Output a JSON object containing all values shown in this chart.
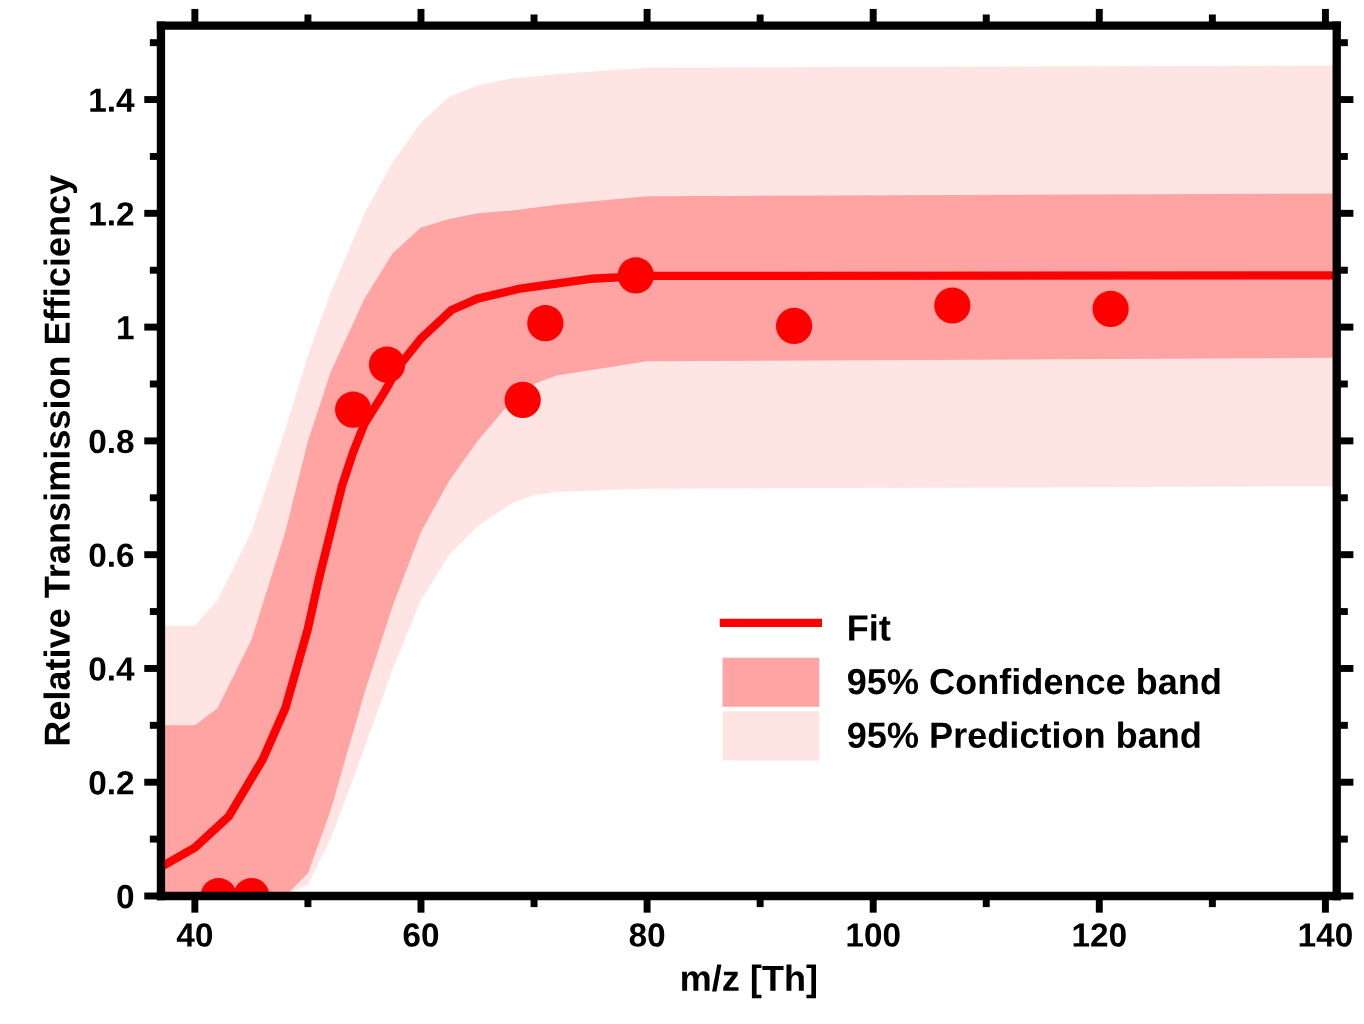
{
  "chart_data": {
    "type": "scatter",
    "xlabel": "m/z [Th]",
    "ylabel": "Relative Transimission Efficiency",
    "xlim": [
      37,
      141
    ],
    "xticks": [
      40,
      60,
      80,
      100,
      120,
      140
    ],
    "ylim": [
      0,
      1.53
    ],
    "yticks": [
      0,
      0.2,
      0.4,
      0.6,
      0.8,
      1,
      1.2,
      1.4
    ],
    "legend": "bottom right",
    "grid": false,
    "series": [
      {
        "name": "95% Prediction band",
        "type": "area",
        "color": "#ffe4e4",
        "x": [
          37,
          40,
          42,
          45,
          48,
          50,
          52,
          55,
          57.5,
          60,
          62.5,
          65,
          68,
          70,
          72,
          80,
          141
        ],
        "values": [
          null,
          null,
          null,
          null,
          null,
          null,
          null,
          null,
          null,
          null,
          null,
          null,
          null,
          null,
          null,
          null,
          null
        ],
        "upper": [
          0.475,
          0.475,
          0.52,
          0.64,
          0.82,
          0.95,
          1.06,
          1.2,
          1.29,
          1.36,
          1.405,
          1.425,
          1.437,
          1.44,
          1.445,
          1.456,
          1.46
        ],
        "lower": [
          0,
          0,
          0,
          0,
          0,
          0.02,
          0.1,
          0.26,
          0.4,
          0.52,
          0.6,
          0.65,
          0.69,
          0.705,
          0.71,
          0.716,
          0.72
        ]
      },
      {
        "name": "95% Confidence band",
        "type": "area",
        "color": "#ffa3a3",
        "x": [
          37,
          40,
          42,
          45,
          48,
          50,
          52,
          55,
          57.5,
          60,
          62.5,
          65,
          68,
          70,
          72,
          80,
          141
        ],
        "values": [
          null,
          null,
          null,
          null,
          null,
          null,
          null,
          null,
          null,
          null,
          null,
          null,
          null,
          null,
          null,
          null,
          null
        ],
        "upper": [
          0.3,
          0.3,
          0.33,
          0.45,
          0.64,
          0.8,
          0.92,
          1.05,
          1.13,
          1.175,
          1.19,
          1.2,
          1.205,
          1.21,
          1.215,
          1.23,
          1.235
        ],
        "lower": [
          0,
          0,
          0,
          0,
          0,
          0.04,
          0.15,
          0.357,
          0.51,
          0.64,
          0.73,
          0.8,
          0.87,
          0.9,
          0.915,
          0.94,
          0.946
        ]
      },
      {
        "name": "Fit",
        "type": "line",
        "color": "#ff0000",
        "marker": "none",
        "line_style": "solid",
        "x": [
          37,
          40,
          43,
          46,
          48,
          50,
          51,
          52,
          53,
          54,
          55,
          56.8,
          58,
          60,
          62.7,
          65,
          68.6,
          75,
          80,
          141
        ],
        "values": [
          0.051,
          0.085,
          0.14,
          0.24,
          0.33,
          0.47,
          0.56,
          0.64,
          0.72,
          0.78,
          0.83,
          0.887,
          0.93,
          0.98,
          1.03,
          1.05,
          1.067,
          1.085,
          1.09,
          1.091
        ]
      },
      {
        "color": "#ff0000",
        "marker": "circle",
        "x": [
          42.1,
          45,
          54,
          57,
          69,
          71,
          79,
          93,
          107,
          121
        ],
        "values": [
          0,
          0,
          0.855,
          0.934,
          0.872,
          1.007,
          1.091,
          1.002,
          1.038,
          1.032
        ]
      }
    ]
  }
}
